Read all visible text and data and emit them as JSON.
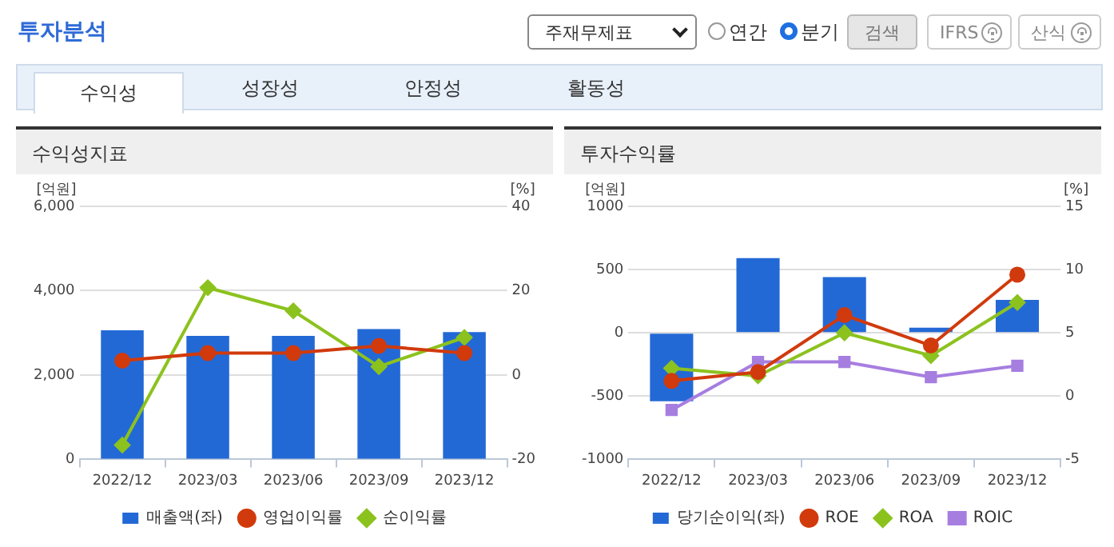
{
  "chart_data": [
    {
      "type": "other",
      "title": "투자분석",
      "annotations": [
        "주재무제표",
        "연간",
        "분기",
        "검색",
        "IFRS",
        "산식",
        "수익성",
        "성장성",
        "안정성",
        "활동성"
      ]
    },
    {
      "type": "bar",
      "title": "수익성지표",
      "ylabel": "[억원]",
      "y2label": "[%]",
      "categories": [
        "2022/12",
        "2023/03",
        "2023/06",
        "2023/09",
        "2023/12"
      ],
      "series": [
        {
          "name": "매출액(좌)",
          "type": "bar",
          "color": "#2369d6",
          "values": [
            3060,
            2930,
            2930,
            3090,
            3020
          ]
        },
        {
          "name": "영업이익률",
          "type": "line",
          "axis": "y2",
          "marker": "circle",
          "color": "#d13a0c",
          "values": [
            3.4,
            5.2,
            5.2,
            6.9,
            5.2
          ]
        },
        {
          "name": "순이익률",
          "type": "line",
          "axis": "y2",
          "marker": "diamond",
          "color": "#8cc21e",
          "values": [
            -16.6,
            20.7,
            15.2,
            2.0,
            8.9
          ]
        }
      ],
      "ylim": [
        0,
        6000
      ],
      "yticks": [
        0,
        {
          "value": 2000,
          "label": "2,000"
        },
        {
          "value": 4000,
          "label": "4,000"
        },
        {
          "value": 6000,
          "label": "6,000"
        }
      ],
      "y2lim": [
        -20,
        40
      ],
      "y2ticks": [
        -20,
        0,
        20,
        40
      ],
      "grid": "y",
      "legend": "bottom"
    },
    {
      "type": "bar",
      "title": "투자수익률",
      "ylabel": "[억원]",
      "y2label": "[%]",
      "categories": [
        "2022/12",
        "2023/03",
        "2023/06",
        "2023/09",
        "2023/12"
      ],
      "series": [
        {
          "name": "당기순이익(좌)",
          "type": "bar",
          "color": "#2369d6",
          "values": [
            -540,
            590,
            440,
            40,
            260
          ]
        },
        {
          "name": "ROE",
          "type": "line",
          "axis": "y2",
          "marker": "circle",
          "color": "#d13a0c",
          "values": [
            1.2,
            1.9,
            6.4,
            4.0,
            9.6
          ]
        },
        {
          "name": "ROA",
          "type": "line",
          "axis": "y2",
          "marker": "diamond",
          "color": "#8cc21e",
          "values": [
            2.2,
            1.6,
            5.0,
            3.2,
            7.4
          ]
        },
        {
          "name": "ROIC",
          "type": "line",
          "axis": "y2",
          "marker": "square",
          "color": "#a67ee0",
          "values": [
            -1.1,
            2.7,
            2.7,
            1.5,
            2.4
          ]
        }
      ],
      "ylim": [
        -1000,
        1000
      ],
      "yticks": [
        -1000,
        -500,
        0,
        500,
        1000
      ],
      "y2lim": [
        -5,
        15
      ],
      "y2ticks": [
        -5,
        0,
        5,
        10,
        15
      ],
      "grid": "y",
      "legend": "bottom"
    }
  ]
}
